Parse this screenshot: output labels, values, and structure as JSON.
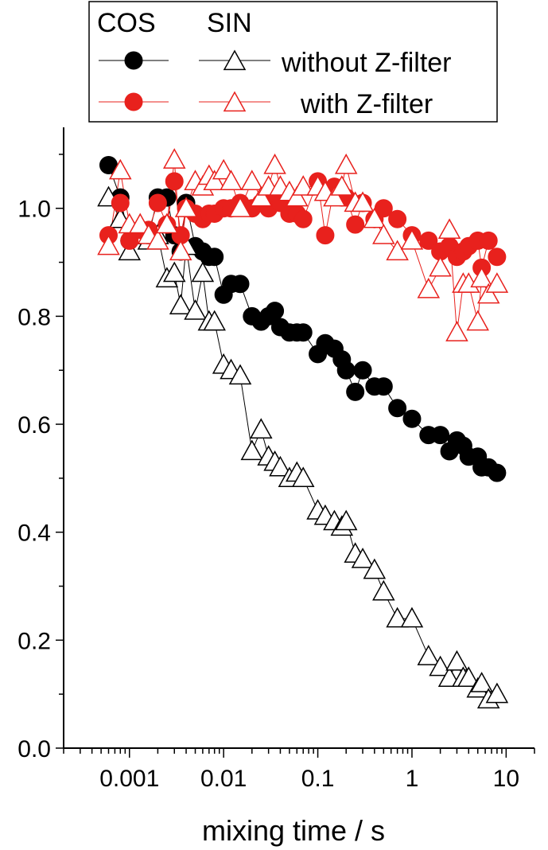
{
  "chart_data": {
    "type": "scatter",
    "title": "",
    "xlabel": "mixing time / s",
    "ylabel": "",
    "x_scale": "log",
    "xlim": [
      0.0002,
      20
    ],
    "ylim": [
      0,
      1.15
    ],
    "x_ticks": [
      {
        "value": 0.001,
        "label": "0.001"
      },
      {
        "value": 0.01,
        "label": "0.01"
      },
      {
        "value": 0.1,
        "label": "0.1"
      },
      {
        "value": 1,
        "label": "1"
      },
      {
        "value": 10,
        "label": "10"
      }
    ],
    "y_ticks": [
      {
        "value": 0.0,
        "label": "0.0"
      },
      {
        "value": 0.2,
        "label": "0.2"
      },
      {
        "value": 0.4,
        "label": "0.4"
      },
      {
        "value": 0.6,
        "label": "0.6"
      },
      {
        "value": 0.8,
        "label": "0.8"
      },
      {
        "value": 1.0,
        "label": "1.0"
      }
    ],
    "grid": false,
    "legend": {
      "placement": "top",
      "col_headers": [
        "COS",
        "SIN"
      ],
      "rows": [
        {
          "label": "without Z-filter",
          "color": "#000000"
        },
        {
          "label": "with Z-filter",
          "color": "#e8211d"
        }
      ]
    },
    "series": [
      {
        "group": "COS",
        "row": "without Z-filter",
        "marker": "filled-circle",
        "color": "#000000",
        "x": [
          0.0006,
          0.0008,
          0.001,
          0.0013,
          0.0016,
          0.002,
          0.0025,
          0.003,
          0.0035,
          0.004,
          0.005,
          0.006,
          0.007,
          0.008,
          0.01,
          0.012,
          0.015,
          0.02,
          0.025,
          0.03,
          0.035,
          0.04,
          0.05,
          0.06,
          0.07,
          0.1,
          0.12,
          0.15,
          0.18,
          0.2,
          0.25,
          0.3,
          0.4,
          0.5,
          0.7,
          1.0,
          1.5,
          2.0,
          2.5,
          3.0,
          3.5,
          4.0,
          5.0,
          5.5,
          6.5,
          8.0
        ],
        "y": [
          1.08,
          1.02,
          0.94,
          0.95,
          0.95,
          1.02,
          1.02,
          0.95,
          0.92,
          1.01,
          0.93,
          0.92,
          0.91,
          0.91,
          0.84,
          0.86,
          0.86,
          0.8,
          0.79,
          0.8,
          0.81,
          0.78,
          0.77,
          0.77,
          0.77,
          0.73,
          0.75,
          0.74,
          0.72,
          0.7,
          0.66,
          0.7,
          0.67,
          0.67,
          0.63,
          0.61,
          0.58,
          0.58,
          0.55,
          0.57,
          0.56,
          0.54,
          0.54,
          0.52,
          0.52,
          0.51
        ]
      },
      {
        "group": "SIN",
        "row": "without Z-filter",
        "marker": "open-triangle",
        "color": "#000000",
        "x": [
          0.0006,
          0.0008,
          0.001,
          0.0013,
          0.0016,
          0.002,
          0.0025,
          0.003,
          0.0035,
          0.004,
          0.005,
          0.006,
          0.007,
          0.008,
          0.01,
          0.012,
          0.015,
          0.02,
          0.025,
          0.03,
          0.035,
          0.04,
          0.05,
          0.06,
          0.07,
          0.1,
          0.12,
          0.15,
          0.18,
          0.2,
          0.25,
          0.3,
          0.4,
          0.5,
          0.7,
          1.0,
          1.5,
          2.0,
          2.5,
          3.0,
          3.5,
          4.0,
          5.0,
          5.5,
          6.5,
          8.0
        ],
        "y": [
          1.02,
          0.98,
          0.92,
          0.95,
          0.94,
          0.95,
          0.87,
          0.88,
          0.82,
          0.93,
          0.81,
          0.88,
          0.79,
          0.79,
          0.71,
          0.7,
          0.69,
          0.55,
          0.59,
          0.54,
          0.53,
          0.52,
          0.5,
          0.51,
          0.5,
          0.44,
          0.43,
          0.42,
          0.41,
          0.42,
          0.36,
          0.35,
          0.33,
          0.29,
          0.24,
          0.24,
          0.17,
          0.15,
          0.13,
          0.16,
          0.13,
          0.13,
          0.11,
          0.12,
          0.09,
          0.1
        ]
      },
      {
        "group": "COS",
        "row": "with Z-filter",
        "marker": "filled-circle",
        "color": "#e8211d",
        "x": [
          0.0006,
          0.0008,
          0.001,
          0.0013,
          0.0016,
          0.002,
          0.0025,
          0.003,
          0.0035,
          0.004,
          0.005,
          0.006,
          0.007,
          0.008,
          0.01,
          0.012,
          0.015,
          0.02,
          0.025,
          0.03,
          0.035,
          0.04,
          0.05,
          0.06,
          0.07,
          0.1,
          0.12,
          0.15,
          0.18,
          0.2,
          0.25,
          0.3,
          0.4,
          0.5,
          0.7,
          1.0,
          1.5,
          2.0,
          2.5,
          3.0,
          3.5,
          4.0,
          5.0,
          5.5,
          6.5,
          8.0
        ],
        "y": [
          0.95,
          1.01,
          0.94,
          0.96,
          0.96,
          1.01,
          0.97,
          1.05,
          0.95,
          1.0,
          0.99,
          0.98,
          0.99,
          0.99,
          1.0,
          1.0,
          1.01,
          1.0,
          1.01,
          1.0,
          1.02,
          1.01,
          0.99,
          0.99,
          0.98,
          1.05,
          0.95,
          1.04,
          1.02,
          1.02,
          0.97,
          1.01,
          0.98,
          1.0,
          0.98,
          0.95,
          0.94,
          0.92,
          0.93,
          0.91,
          0.92,
          0.93,
          0.94,
          0.89,
          0.94,
          0.91
        ]
      },
      {
        "group": "SIN",
        "row": "with Z-filter",
        "marker": "open-triangle",
        "color": "#e8211d",
        "x": [
          0.0006,
          0.0008,
          0.001,
          0.0013,
          0.0016,
          0.002,
          0.0025,
          0.003,
          0.0035,
          0.004,
          0.005,
          0.006,
          0.007,
          0.008,
          0.01,
          0.012,
          0.015,
          0.02,
          0.025,
          0.03,
          0.035,
          0.04,
          0.05,
          0.06,
          0.07,
          0.1,
          0.12,
          0.15,
          0.18,
          0.2,
          0.25,
          0.3,
          0.4,
          0.5,
          0.7,
          1.0,
          1.5,
          2.0,
          2.5,
          3.0,
          3.5,
          4.0,
          5.0,
          5.5,
          6.5,
          8.0
        ],
        "y": [
          0.93,
          1.07,
          0.97,
          0.97,
          0.95,
          0.94,
          0.97,
          1.09,
          0.92,
          1.0,
          1.05,
          1.04,
          1.06,
          1.05,
          1.07,
          1.05,
          1.0,
          1.05,
          1.02,
          1.04,
          1.08,
          1.04,
          1.03,
          1.02,
          1.04,
          1.04,
          1.03,
          1.02,
          1.04,
          1.08,
          1.01,
          1.01,
          0.98,
          0.95,
          0.92,
          0.94,
          0.85,
          0.89,
          0.96,
          0.77,
          0.86,
          0.86,
          0.79,
          0.87,
          0.84,
          0.86
        ]
      }
    ]
  }
}
